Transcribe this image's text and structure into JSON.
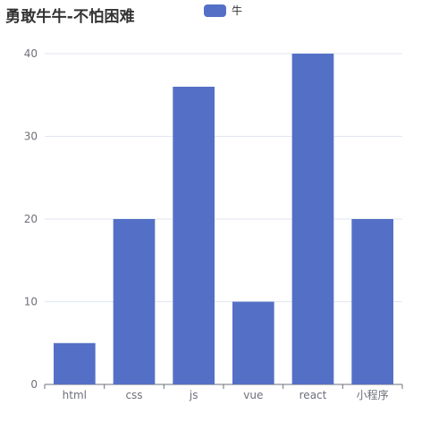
{
  "chart_data": {
    "type": "bar",
    "title": "勇敢牛牛-不怕困难",
    "categories": [
      "html",
      "css",
      "js",
      "vue",
      "react",
      "小程序"
    ],
    "series": [
      {
        "name": "牛",
        "values": [
          5,
          20,
          36,
          10,
          40,
          20
        ],
        "color": "#5470c6"
      }
    ],
    "ylim": [
      0,
      40
    ],
    "yticks": [
      0,
      10,
      20,
      30,
      40
    ],
    "grid": true,
    "legend_position": "top-center"
  }
}
